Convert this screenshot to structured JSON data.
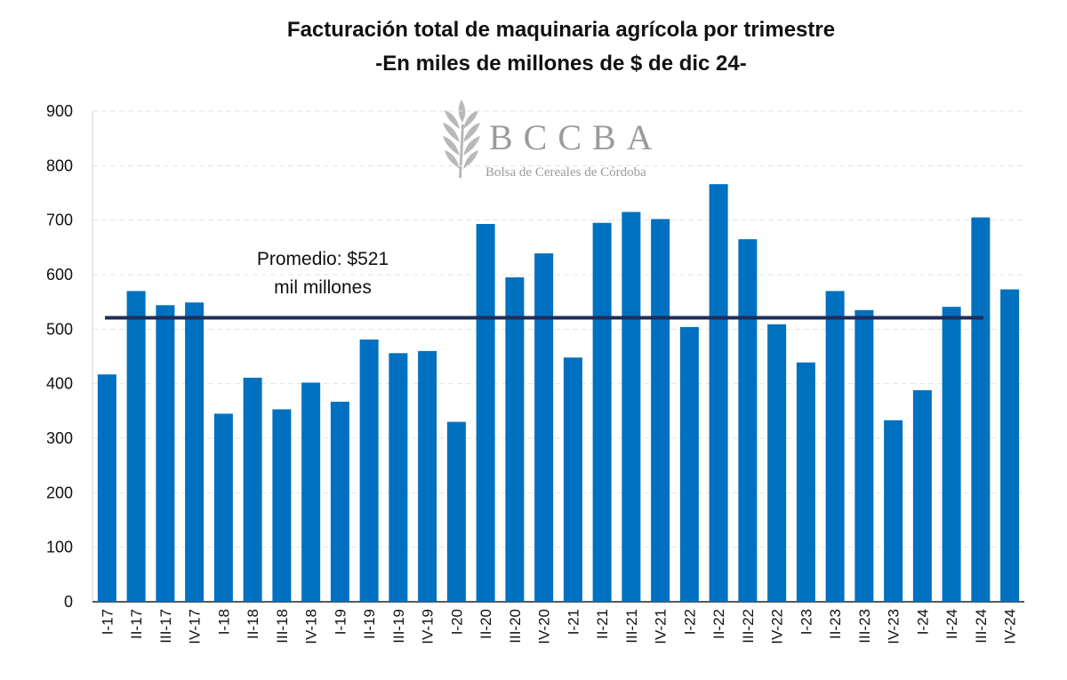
{
  "chart_data": {
    "type": "bar",
    "title": "Facturación total de maquinaria agrícola por trimestre",
    "subtitle": "-En miles de millones de $ de dic 24-",
    "xlabel": "",
    "ylabel": "",
    "ylim": [
      0,
      900
    ],
    "yticks": [
      "0",
      "100",
      "200",
      "300",
      "400",
      "500",
      "600",
      "700",
      "800",
      "900"
    ],
    "grid": true,
    "bar_color": "#0070c0",
    "average_line_color": "#1f2d5a",
    "categories": [
      "I-17",
      "II-17",
      "III-17",
      "IV-17",
      "I-18",
      "II-18",
      "III-18",
      "IV-18",
      "I-19",
      "II-19",
      "III-19",
      "IV-19",
      "I-20",
      "II-20",
      "III-20",
      "IV-20",
      "I-21",
      "II-21",
      "III-21",
      "IV-21",
      "I-22",
      "II-22",
      "III-22",
      "IV-22",
      "I-23",
      "II-23",
      "III-23",
      "IV-23",
      "I-24",
      "II-24",
      "III-24",
      "IV-24"
    ],
    "values": [
      417,
      570,
      544,
      549,
      345,
      411,
      353,
      402,
      367,
      481,
      456,
      460,
      330,
      693,
      595,
      639,
      448,
      695,
      715,
      702,
      504,
      766,
      665,
      509,
      439,
      570,
      535,
      333,
      388,
      541,
      705,
      573
    ],
    "average": {
      "value": 521,
      "label_line1": "Promedio: $521",
      "label_line2": "mil millones"
    }
  },
  "watermark": {
    "name": "BCCBA",
    "subtitle": "Bolsa de Cereales de Córdoba",
    "icon": "wheat-icon"
  }
}
